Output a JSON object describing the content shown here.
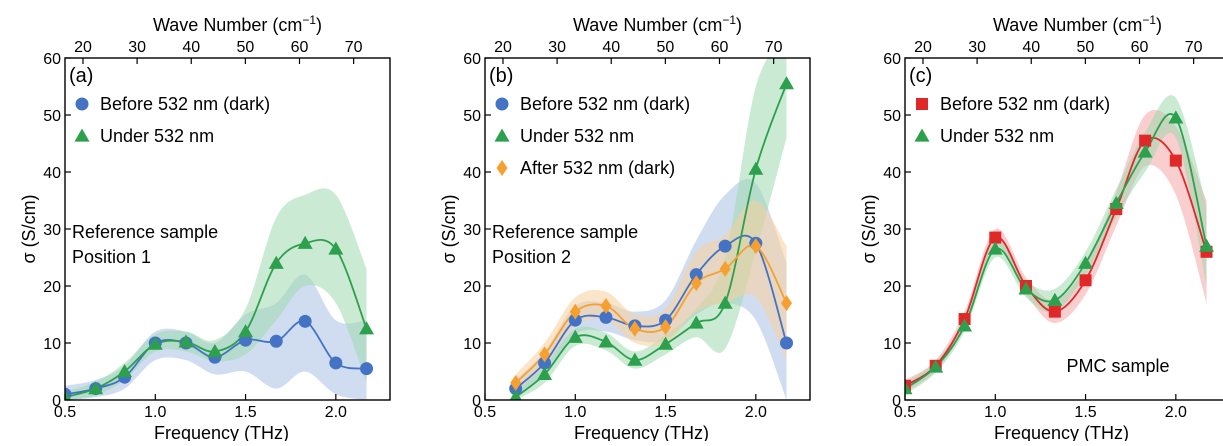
{
  "colors": {
    "blue": "#4472c4",
    "green": "#2ca04c",
    "orange": "#f5a030",
    "red": "#e02828",
    "blue_band": "#a9c1e6",
    "green_band": "#9fd9ae",
    "orange_band": "#f8cf9a",
    "red_band": "#f2a6a6"
  },
  "chart_data": [
    {
      "type": "line",
      "panel_label": "(a)",
      "xlabel": "Frequency (THz)",
      "ylabel": "σ (S/cm)",
      "top_xlabel": "Wave Number (cm",
      "top_xlabel_sup": "−1",
      "top_xlabel_close": ")",
      "xlim": [
        0.5,
        2.3
      ],
      "ylim": [
        0,
        60
      ],
      "x_ticks": [
        0.5,
        1.0,
        1.5,
        2.0
      ],
      "x_tick_labels": [
        "0.5",
        "1.0",
        "1.5",
        "2.0"
      ],
      "y_ticks": [
        0,
        10,
        20,
        30,
        40,
        50,
        60
      ],
      "y_tick_labels": [
        "0",
        "10",
        "20",
        "30",
        "40",
        "50",
        "60"
      ],
      "top_ticks": [
        20,
        30,
        40,
        50,
        60,
        70
      ],
      "top_tick_labels": [
        "20",
        "30",
        "40",
        "50",
        "60",
        "70"
      ],
      "annotation": [
        "Reference sample",
        "Position 1"
      ],
      "legend": [
        "Before 532 nm (dark)",
        "Under 532 nm"
      ],
      "series": [
        {
          "name": "Before 532 nm (dark)",
          "color": "blue",
          "marker": "circle",
          "x": [
            0.5,
            0.67,
            0.83,
            1.0,
            1.17,
            1.33,
            1.5,
            1.67,
            1.83,
            2.0,
            2.17
          ],
          "y": [
            1,
            2,
            4,
            10,
            10,
            7.5,
            10.5,
            10.3,
            13.8,
            6.5,
            5.5
          ],
          "band_lower": [
            0,
            0.5,
            2,
            7,
            7,
            4.5,
            5,
            2,
            5,
            1,
            0
          ],
          "band_upper": [
            2.5,
            3.5,
            6,
            12,
            12,
            10,
            15,
            17,
            22,
            14,
            14
          ]
        },
        {
          "name": "Under 532 nm",
          "color": "green",
          "marker": "triangle",
          "x": [
            0.5,
            0.67,
            0.83,
            1.0,
            1.17,
            1.33,
            1.5,
            1.67,
            1.83,
            2.0,
            2.17
          ],
          "y": [
            0.5,
            2,
            5,
            9.8,
            10.2,
            8.5,
            12,
            24,
            27.5,
            26.5,
            12.5
          ],
          "band_lower": [
            0,
            0.8,
            3.5,
            8.5,
            8.5,
            6.8,
            8,
            14,
            20,
            17,
            3
          ],
          "band_upper": [
            1.5,
            3.2,
            6.5,
            11.5,
            12,
            10.5,
            16,
            32,
            36,
            36,
            23
          ]
        }
      ]
    },
    {
      "type": "line",
      "panel_label": "(b)",
      "xlabel": "Frequency (THz)",
      "ylabel": "σ (S/cm)",
      "top_xlabel": "Wave Number (cm",
      "top_xlabel_sup": "−1",
      "top_xlabel_close": ")",
      "xlim": [
        0.5,
        2.3
      ],
      "ylim": [
        0,
        60
      ],
      "x_ticks": [
        0.5,
        1.0,
        1.5,
        2.0
      ],
      "x_tick_labels": [
        "0.5",
        "1.0",
        "1.5",
        "2.0"
      ],
      "y_ticks": [
        0,
        10,
        20,
        30,
        40,
        50,
        60
      ],
      "y_tick_labels": [
        "0",
        "10",
        "20",
        "30",
        "40",
        "50",
        "60"
      ],
      "top_ticks": [
        20,
        30,
        40,
        50,
        60,
        70
      ],
      "top_tick_labels": [
        "20",
        "30",
        "40",
        "50",
        "60",
        "70"
      ],
      "annotation": [
        "Reference sample",
        "Position 2"
      ],
      "legend": [
        "Before 532 nm (dark)",
        "Under 532 nm",
        "After 532 nm (dark)"
      ],
      "series": [
        {
          "name": "Before 532 nm (dark)",
          "color": "blue",
          "marker": "circle",
          "x": [
            0.67,
            0.83,
            1.0,
            1.17,
            1.33,
            1.5,
            1.67,
            1.83,
            2.0,
            2.17
          ],
          "y": [
            2,
            6.5,
            14,
            14.5,
            13,
            14,
            22,
            27,
            27.5,
            10
          ],
          "band_lower": [
            0.5,
            4.5,
            11.5,
            12,
            10.5,
            10.5,
            15,
            17,
            14,
            0
          ],
          "band_upper": [
            3.5,
            8.5,
            16.5,
            17,
            15.5,
            17.5,
            28,
            36,
            38,
            24
          ]
        },
        {
          "name": "Under 532 nm",
          "color": "green",
          "marker": "triangle",
          "x": [
            0.67,
            0.83,
            1.0,
            1.17,
            1.33,
            1.5,
            1.67,
            1.83,
            2.0,
            2.17
          ],
          "y": [
            0.5,
            4.5,
            11,
            10.2,
            7,
            9.8,
            13.5,
            17,
            40.5,
            55.5
          ],
          "band_lower": [
            0,
            3,
            9.5,
            8.7,
            5.5,
            8,
            11,
            9,
            26,
            46
          ],
          "band_upper": [
            1.5,
            6,
            12.5,
            11.8,
            8.5,
            11.5,
            16,
            25,
            55,
            64
          ]
        },
        {
          "name": "After 532 nm (dark)",
          "color": "orange",
          "marker": "diamond",
          "x": [
            0.67,
            0.83,
            1.0,
            1.17,
            1.33,
            1.5,
            1.67,
            1.83,
            2.0,
            2.17
          ],
          "y": [
            3,
            8,
            15.5,
            16.5,
            12.5,
            12.8,
            20.5,
            23,
            27,
            17
          ],
          "band_lower": [
            1.5,
            6,
            13,
            14,
            10,
            10,
            15.5,
            17,
            18,
            7
          ],
          "band_upper": [
            4.5,
            10,
            18,
            19,
            15,
            16,
            26,
            29,
            35,
            27
          ]
        }
      ]
    },
    {
      "type": "line",
      "panel_label": "(c)",
      "xlabel": "Frequency (THz)",
      "ylabel": "σ (S/cm)",
      "top_xlabel": "Wave Number (cm",
      "top_xlabel_sup": "−1",
      "top_xlabel_close": ")",
      "xlim": [
        0.5,
        2.3
      ],
      "ylim": [
        0,
        60
      ],
      "x_ticks": [
        0.5,
        1.0,
        1.5,
        2.0
      ],
      "x_tick_labels": [
        "0.5",
        "1.0",
        "1.5",
        "2.0"
      ],
      "y_ticks": [
        0,
        10,
        20,
        30,
        40,
        50,
        60
      ],
      "y_tick_labels": [
        "0",
        "10",
        "20",
        "30",
        "40",
        "50",
        "60"
      ],
      "top_ticks": [
        20,
        30,
        40,
        50,
        60,
        70
      ],
      "top_tick_labels": [
        "20",
        "30",
        "40",
        "50",
        "60",
        "70"
      ],
      "annotation": [
        "PMC sample"
      ],
      "legend": [
        "Before 532 nm (dark)",
        "Under 532 nm"
      ],
      "series": [
        {
          "name": "Before 532 nm (dark)",
          "color": "red",
          "marker": "square",
          "x": [
            0.5,
            0.67,
            0.83,
            1.0,
            1.17,
            1.33,
            1.5,
            1.67,
            1.83,
            2.0,
            2.17
          ],
          "y": [
            2.5,
            6,
            14.2,
            28.5,
            20,
            15.5,
            21,
            33.5,
            45.5,
            42,
            26
          ],
          "band_lower": [
            1.5,
            5,
            13,
            27,
            18.5,
            13.5,
            18.5,
            30.5,
            41,
            36,
            17
          ],
          "band_upper": [
            3.5,
            7,
            15.5,
            30,
            21.5,
            17.5,
            23.5,
            36.5,
            50,
            48,
            35
          ]
        },
        {
          "name": "Under 532 nm",
          "color": "green",
          "marker": "triangle",
          "x": [
            0.5,
            0.67,
            0.83,
            1.0,
            1.17,
            1.33,
            1.5,
            1.67,
            1.83,
            2.0,
            2.17
          ],
          "y": [
            2,
            5.8,
            13,
            26.5,
            19.5,
            17.5,
            24,
            34.5,
            43.5,
            49.5,
            27
          ],
          "band_lower": [
            1,
            4.8,
            12,
            25,
            18,
            15.5,
            22,
            32,
            40,
            46,
            20
          ],
          "band_upper": [
            3,
            6.8,
            14,
            28,
            21,
            19.5,
            26,
            37,
            47,
            53,
            34
          ]
        }
      ]
    }
  ]
}
